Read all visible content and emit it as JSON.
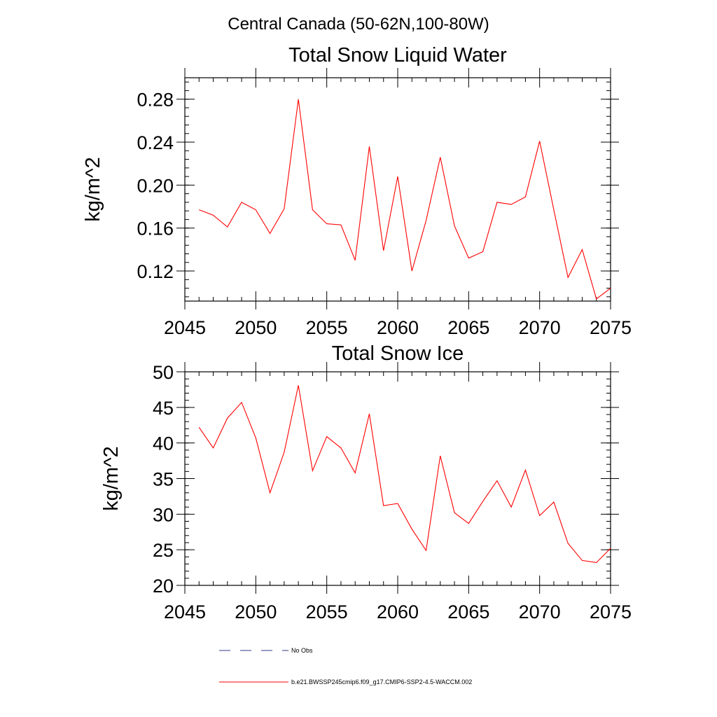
{
  "figure": {
    "title": "Central Canada (50-62N,100-80W)"
  },
  "legend": {
    "placement": "bottom",
    "entries": [
      {
        "label": "No Obs",
        "color": "#303a8a",
        "style": "dashed"
      },
      {
        "label": "b.e21.BWSSP245cmip6.f09_g17.CMIP6-SSP2-4.5-WACCM.002",
        "color": "#ff0000",
        "style": "solid"
      }
    ]
  },
  "chart_data": [
    {
      "type": "line",
      "title": "Total Snow Liquid Water",
      "xlabel": "",
      "ylabel": "kg/m^2",
      "xlim": [
        2045,
        2075
      ],
      "ylim": [
        0.092,
        0.3
      ],
      "xticks": [
        2045,
        2050,
        2055,
        2060,
        2065,
        2070,
        2075
      ],
      "xtick_labels": [
        "2045",
        "2050",
        "2055",
        "2060",
        "2065",
        "2070",
        "2075"
      ],
      "yticks": [
        0.12,
        0.16,
        0.2,
        0.24,
        0.28
      ],
      "ytick_labels": [
        "0.12",
        "0.16",
        "0.20",
        "0.24",
        "0.28"
      ],
      "grid": false,
      "x": [
        2046,
        2047,
        2048,
        2049,
        2050,
        2051,
        2052,
        2053,
        2054,
        2055,
        2056,
        2057,
        2058,
        2059,
        2060,
        2061,
        2062,
        2063,
        2064,
        2065,
        2066,
        2067,
        2068,
        2069,
        2070,
        2071,
        2072,
        2073,
        2074,
        2075
      ],
      "series": [
        {
          "name": "b.e21.BWSSP245cmip6.f09_g17.CMIP6-SSP2-4.5-WACCM.002",
          "color": "#ff0000",
          "values": [
            0.177,
            0.172,
            0.161,
            0.184,
            0.177,
            0.155,
            0.178,
            0.28,
            0.177,
            0.164,
            0.163,
            0.13,
            0.236,
            0.139,
            0.208,
            0.12,
            0.167,
            0.226,
            0.162,
            0.132,
            0.138,
            0.184,
            0.182,
            0.189,
            0.241,
            0.177,
            0.114,
            0.14,
            0.094,
            0.104
          ]
        }
      ]
    },
    {
      "type": "line",
      "title": "Total Snow Ice",
      "xlabel": "",
      "ylabel": "kg/m^2",
      "xlim": [
        2045,
        2075
      ],
      "ylim": [
        20,
        50
      ],
      "xticks": [
        2045,
        2050,
        2055,
        2060,
        2065,
        2070,
        2075
      ],
      "xtick_labels": [
        "2045",
        "2050",
        "2055",
        "2060",
        "2065",
        "2070",
        "2075"
      ],
      "yticks": [
        20,
        25,
        30,
        35,
        40,
        45,
        50
      ],
      "ytick_labels": [
        "20",
        "25",
        "30",
        "35",
        "40",
        "45",
        "50"
      ],
      "grid": false,
      "x": [
        2046,
        2047,
        2048,
        2049,
        2050,
        2051,
        2052,
        2053,
        2054,
        2055,
        2056,
        2057,
        2058,
        2059,
        2060,
        2061,
        2062,
        2063,
        2064,
        2065,
        2066,
        2067,
        2068,
        2069,
        2070,
        2071,
        2072,
        2073,
        2074,
        2075
      ],
      "series": [
        {
          "name": "b.e21.BWSSP245cmip6.f09_g17.CMIP6-SSP2-4.5-WACCM.002",
          "color": "#ff0000",
          "values": [
            42.2,
            39.3,
            43.5,
            45.7,
            40.7,
            33.0,
            38.7,
            48.1,
            36.1,
            40.9,
            39.3,
            35.8,
            44.1,
            31.2,
            31.5,
            27.9,
            24.9,
            38.2,
            30.2,
            28.7,
            31.8,
            34.7,
            31.0,
            36.2,
            29.8,
            31.7,
            25.9,
            23.5,
            23.2,
            25.2
          ]
        }
      ]
    }
  ]
}
